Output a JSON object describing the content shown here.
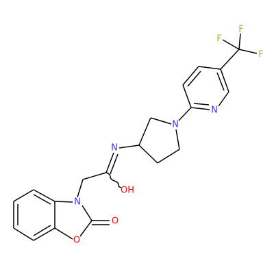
{
  "atoms": [
    {
      "label": "F"
    },
    {
      "label": "F"
    },
    {
      "label": "F"
    },
    {
      "label": "N"
    },
    {
      "label": "N"
    },
    {
      "label": "N"
    },
    {
      "label": "OH"
    },
    {
      "label": "N"
    },
    {
      "label": "O"
    },
    {
      "label": "O"
    }
  ]
}
